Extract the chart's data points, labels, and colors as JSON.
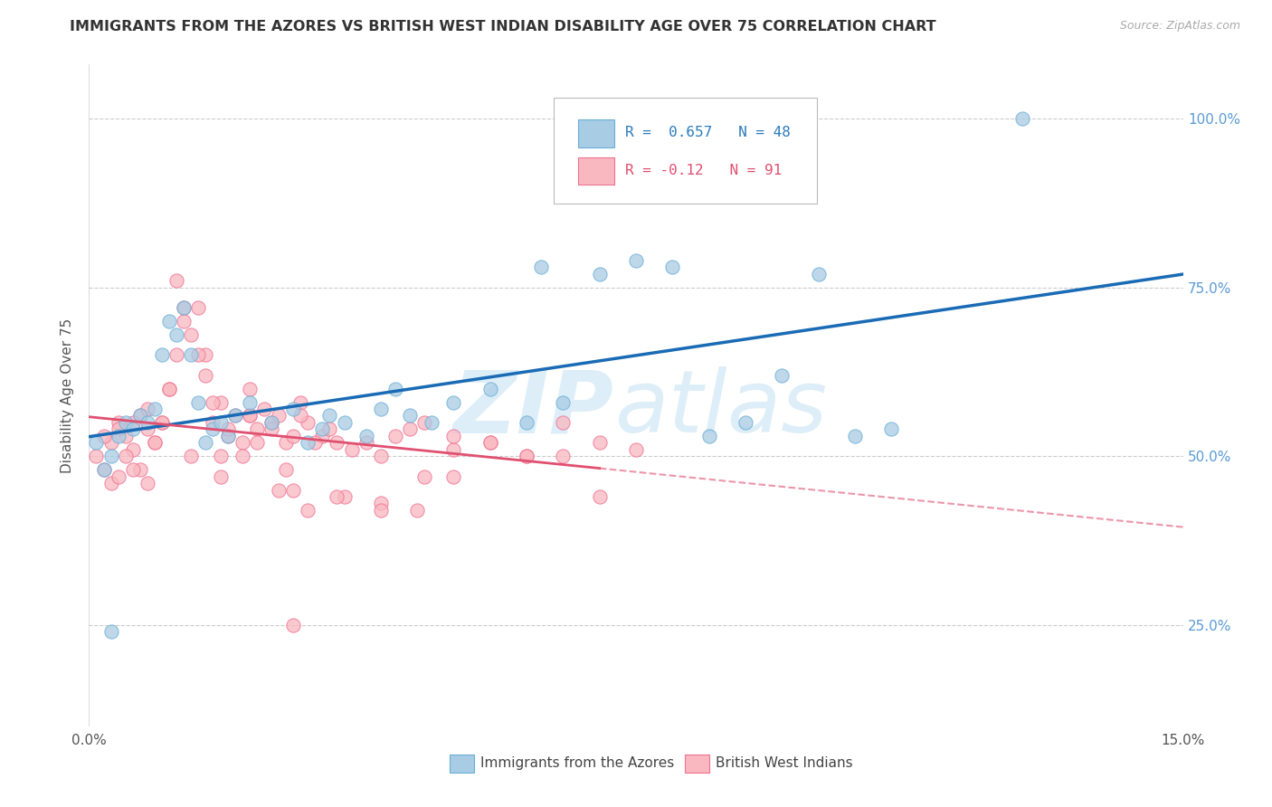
{
  "title": "IMMIGRANTS FROM THE AZORES VS BRITISH WEST INDIAN DISABILITY AGE OVER 75 CORRELATION CHART",
  "source": "Source: ZipAtlas.com",
  "ylabel": "Disability Age Over 75",
  "right_yticks": [
    "100.0%",
    "75.0%",
    "50.0%",
    "25.0%"
  ],
  "right_ytick_vals": [
    1.0,
    0.75,
    0.5,
    0.25
  ],
  "xmin": 0.0,
  "xmax": 0.15,
  "ymin": 0.1,
  "ymax": 1.08,
  "azores_color": "#a8cce4",
  "azores_edge": "#6aaed6",
  "bwi_color": "#f9b8c0",
  "bwi_edge": "#f07090",
  "line_azores_color": "#1a6bb5",
  "line_bwi_color": "#e05070",
  "R_azores": 0.657,
  "N_azores": 48,
  "R_bwi": -0.12,
  "N_bwi": 91,
  "legend_label_azores": "Immigrants from the Azores",
  "legend_label_bwi": "British West Indians",
  "azores_scatter_x": [
    0.001,
    0.002,
    0.003,
    0.004,
    0.005,
    0.006,
    0.007,
    0.008,
    0.009,
    0.01,
    0.011,
    0.012,
    0.013,
    0.014,
    0.015,
    0.016,
    0.017,
    0.018,
    0.019,
    0.02,
    0.022,
    0.025,
    0.028,
    0.03,
    0.032,
    0.033,
    0.035,
    0.038,
    0.04,
    0.042,
    0.044,
    0.047,
    0.05,
    0.055,
    0.06,
    0.062,
    0.065,
    0.07,
    0.075,
    0.08,
    0.085,
    0.09,
    0.095,
    0.1,
    0.105,
    0.11,
    0.128,
    0.003
  ],
  "azores_scatter_y": [
    0.52,
    0.48,
    0.5,
    0.53,
    0.55,
    0.54,
    0.56,
    0.55,
    0.57,
    0.65,
    0.7,
    0.68,
    0.72,
    0.65,
    0.58,
    0.52,
    0.54,
    0.55,
    0.53,
    0.56,
    0.58,
    0.55,
    0.57,
    0.52,
    0.54,
    0.56,
    0.55,
    0.53,
    0.57,
    0.6,
    0.56,
    0.55,
    0.58,
    0.6,
    0.55,
    0.78,
    0.58,
    0.77,
    0.79,
    0.78,
    0.53,
    0.55,
    0.62,
    0.77,
    0.53,
    0.54,
    1.0,
    0.24
  ],
  "bwi_scatter_x": [
    0.001,
    0.002,
    0.003,
    0.004,
    0.005,
    0.006,
    0.007,
    0.008,
    0.009,
    0.01,
    0.011,
    0.012,
    0.013,
    0.014,
    0.015,
    0.016,
    0.017,
    0.018,
    0.019,
    0.02,
    0.021,
    0.022,
    0.023,
    0.024,
    0.025,
    0.026,
    0.027,
    0.028,
    0.029,
    0.03,
    0.032,
    0.034,
    0.036,
    0.038,
    0.04,
    0.042,
    0.044,
    0.046,
    0.05,
    0.055,
    0.06,
    0.065,
    0.07,
    0.075,
    0.003,
    0.005,
    0.007,
    0.009,
    0.011,
    0.013,
    0.015,
    0.017,
    0.019,
    0.021,
    0.023,
    0.025,
    0.027,
    0.029,
    0.031,
    0.033,
    0.002,
    0.004,
    0.006,
    0.008,
    0.012,
    0.016,
    0.018,
    0.022,
    0.026,
    0.03,
    0.035,
    0.04,
    0.045,
    0.05,
    0.004,
    0.006,
    0.008,
    0.01,
    0.014,
    0.018,
    0.022,
    0.028,
    0.034,
    0.04,
    0.046,
    0.05,
    0.055,
    0.06,
    0.065,
    0.07,
    0.028
  ],
  "bwi_scatter_y": [
    0.5,
    0.48,
    0.52,
    0.55,
    0.53,
    0.51,
    0.56,
    0.54,
    0.52,
    0.55,
    0.6,
    0.65,
    0.7,
    0.68,
    0.72,
    0.65,
    0.55,
    0.58,
    0.53,
    0.56,
    0.52,
    0.6,
    0.54,
    0.57,
    0.55,
    0.56,
    0.52,
    0.53,
    0.58,
    0.55,
    0.53,
    0.52,
    0.51,
    0.52,
    0.5,
    0.53,
    0.54,
    0.55,
    0.51,
    0.52,
    0.5,
    0.5,
    0.52,
    0.51,
    0.46,
    0.5,
    0.48,
    0.52,
    0.6,
    0.72,
    0.65,
    0.58,
    0.54,
    0.5,
    0.52,
    0.54,
    0.48,
    0.56,
    0.52,
    0.54,
    0.53,
    0.47,
    0.55,
    0.57,
    0.76,
    0.62,
    0.5,
    0.56,
    0.45,
    0.42,
    0.44,
    0.43,
    0.42,
    0.47,
    0.54,
    0.48,
    0.46,
    0.55,
    0.5,
    0.47,
    0.56,
    0.45,
    0.44,
    0.42,
    0.47,
    0.53,
    0.52,
    0.5,
    0.55,
    0.44,
    0.25
  ]
}
